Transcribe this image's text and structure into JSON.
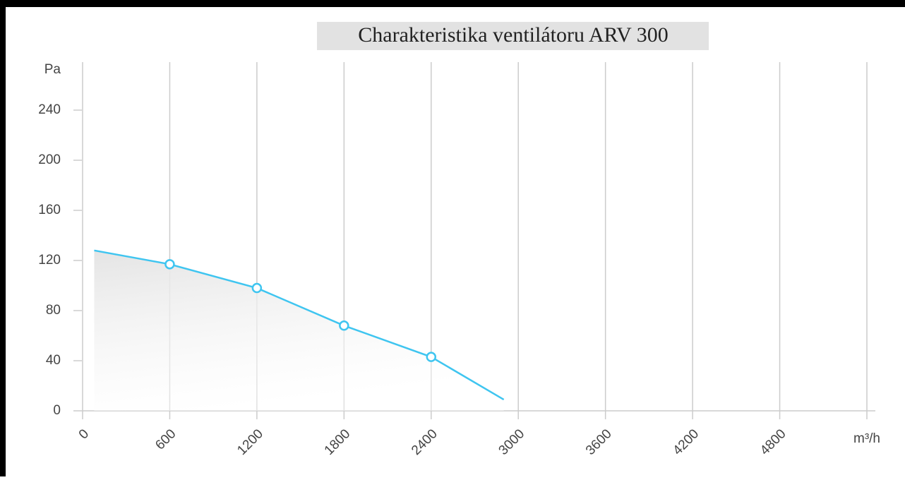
{
  "chart_data": {
    "type": "line",
    "title": "Charakteristika ventilátoru ARV 300",
    "y_label": "Pa",
    "x": [
      80,
      600,
      1200,
      1800,
      2400,
      2900
    ],
    "series": [
      {
        "name": "ARV 300",
        "color": "#3fc5f0",
        "values": [
          128,
          117,
          98,
          68,
          43,
          9
        ],
        "markers": [
          false,
          true,
          true,
          true,
          true,
          false
        ]
      }
    ],
    "xlim": [
      0,
      5400
    ],
    "xticks": [
      0,
      600,
      1200,
      1800,
      2400,
      3000,
      3600,
      4200,
      4800,
      {
        "value": 5400,
        "label": "m³/h"
      }
    ],
    "ylim": [
      0,
      280
    ],
    "yticks": [
      0,
      40,
      80,
      120,
      160,
      200,
      240
    ],
    "grid": true,
    "area": true
  }
}
